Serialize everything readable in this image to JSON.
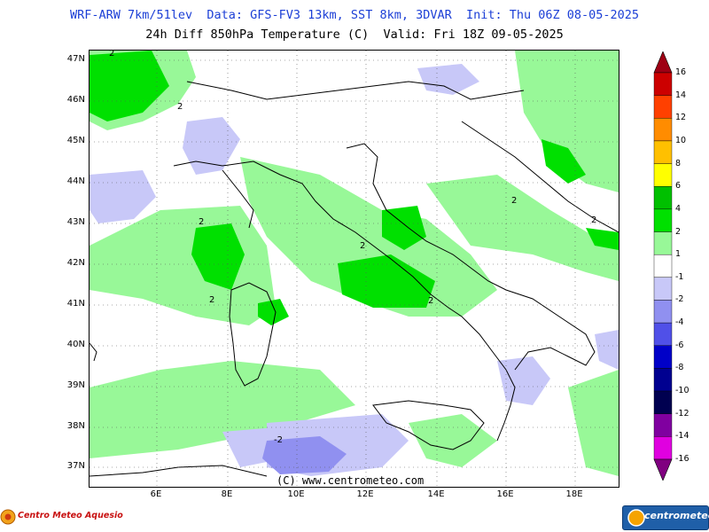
{
  "header": {
    "line1": "WRF-ARW 7km/51lev  Data: GFS-FV3 13km, SST 8km, 3DVAR  Init: Thu 06Z 08-05-2025",
    "line2": "24h Diff 850hPa Temperature (C)  Valid: Fri 18Z 09-05-2025"
  },
  "map": {
    "lat_labels": [
      "47N",
      "46N",
      "45N",
      "44N",
      "43N",
      "42N",
      "41N",
      "40N",
      "39N",
      "38N",
      "37N"
    ],
    "lon_labels": [
      "6E",
      "8E",
      "10E",
      "12E",
      "14E",
      "16E",
      "18E"
    ],
    "contour_labels": [
      "2",
      "2",
      "2",
      "2",
      "2",
      "2",
      "2",
      "2",
      "-2"
    ],
    "copyright": "(C) www.centrometeo.com"
  },
  "legend": {
    "labels": [
      "16",
      "14",
      "12",
      "10",
      "8",
      "6",
      "4",
      "2",
      "1",
      "-1",
      "-2",
      "-4",
      "-6",
      "-8",
      "-10",
      "-12",
      "-14",
      "-16"
    ],
    "colors": [
      "#9e0014",
      "#cc0000",
      "#ff4000",
      "#ff8c00",
      "#ffc000",
      "#ffff00",
      "#00c000",
      "#00e000",
      "#98f898",
      "#ffffff",
      "#c8c8f8",
      "#9090f0",
      "#5050e8",
      "#0000c8",
      "#000090",
      "#000050",
      "#8000a0",
      "#e000e0",
      "#800080"
    ]
  },
  "logos": {
    "left_text": "Centro Meteo Aquesio",
    "right_text": "centrometeo"
  }
}
